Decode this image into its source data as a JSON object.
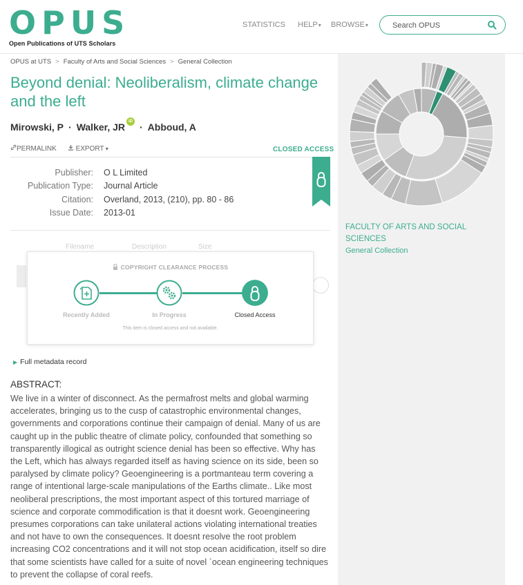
{
  "logo": {
    "word": "OPUS",
    "subtitle": "Open Publications of UTS Scholars"
  },
  "nav": {
    "statistics": "STATISTICS",
    "help": "HELP",
    "browse": "BROWSE"
  },
  "search": {
    "placeholder": "Search OPUS"
  },
  "breadcrumb": [
    "OPUS at UTS",
    "Faculty of Arts and Social Sciences",
    "General Collection"
  ],
  "title": "Beyond denial: Neoliberalism, climate change and the left",
  "authors": [
    "Mirowski, P",
    "Walker, JR",
    "Abboud, A"
  ],
  "orcid_badge": "iD",
  "actions": {
    "permalink": "PERMALINK",
    "export": "EXPORT"
  },
  "access_status": "CLOSED ACCESS",
  "metadata": [
    {
      "key": "Publisher:",
      "value": "O L Limited"
    },
    {
      "key": "Publication Type:",
      "value": "Journal Article"
    },
    {
      "key": "Citation:",
      "value": "Overland, 2013, (210), pp. 80 - 86"
    },
    {
      "key": "Issue Date:",
      "value": "2013-01"
    }
  ],
  "files_columns": [
    "Filename",
    "Description",
    "Size"
  ],
  "copyright": {
    "heading": "COPYRIGHT CLEARANCE PROCESS",
    "steps": [
      "Recently Added",
      "In Progress",
      "Closed Access"
    ],
    "active_step": 3,
    "note": "This item is closed access and not available."
  },
  "full_metadata": "Full metadata record",
  "abstract_heading": "ABSTRACT:",
  "abstract": "We live in a winter of disconnect. As the permafrost melts and global warming accelerates, bringing us to the cusp of catastrophic environmental changes, governments and corporations continue their campaign of denial. Many of us are caught up in the public theatre of climate policy, confounded that something so transparently illogical as outright science denial has been so effective. Why has the Left, which has always regarded itself as having science on its side, been so paralysed by climate policy? Geoengineering is a portmanteau term covering a range of intentional large-scale manipulations of the Earths climate.. Like most neoliberal prescriptions, the most important aspect of this tortured marriage of science and corporate commodification is that it doesnt work. Geoengineering presumes corporations can take unilateral actions violating international treaties and not have to own the consequences. It doesnt resolve the root problem increasing CO2 concentrations and it will not stop ocean acidification, itself so dire that some scientists have called for a suite of novel `ocean engineering techniques to prevent the collapse of coral reefs.",
  "sidebar": {
    "faculty": "FACULTY OF ARTS AND SOCIAL SCIENCES",
    "collection": "General Collection"
  },
  "colors": {
    "accent": "#3cad8f",
    "sunburst_highlight": "#2e8f72",
    "sunburst_grey": "#bdbdbd"
  }
}
